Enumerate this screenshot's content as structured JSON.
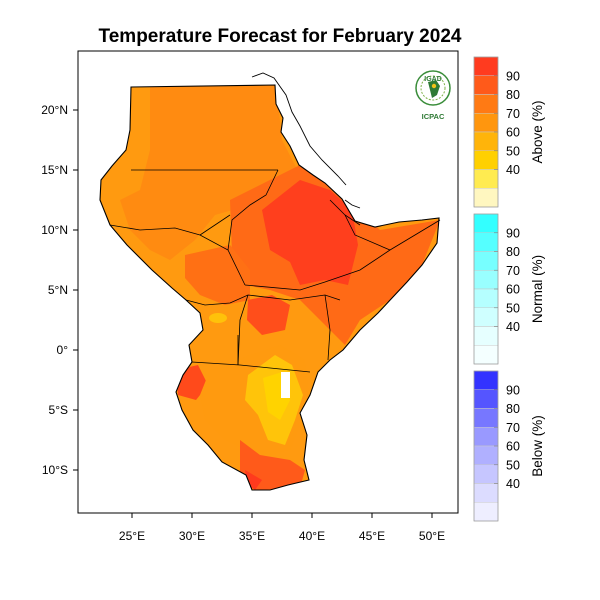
{
  "title": "Temperature Forecast for February 2024",
  "map": {
    "lon_ticks": [
      "25°E",
      "30°E",
      "35°E",
      "40°E",
      "45°E",
      "50°E"
    ],
    "lat_ticks": [
      "20°N",
      "15°N",
      "10°N",
      "5°N",
      "0°",
      "5°S",
      "10°S"
    ],
    "lon_range": [
      20.5,
      52
    ],
    "lat_range": [
      -13.5,
      24.2
    ]
  },
  "logo": {
    "top": "IGAD",
    "bottom": "ICPAC"
  },
  "colorbars": [
    {
      "label": "Above (%)",
      "ticks": [
        "90",
        "80",
        "70",
        "60",
        "50",
        "40"
      ],
      "colors": [
        "#ff3b1f",
        "#ff5a1a",
        "#ff7a14",
        "#ff960e",
        "#ffb40a",
        "#ffd000",
        "#ffeb50",
        "#fff7c0"
      ]
    },
    {
      "label": "Normal (%)",
      "ticks": [
        "90",
        "80",
        "70",
        "60",
        "50",
        "40"
      ],
      "colors": [
        "#33ffff",
        "#55ffff",
        "#77ffff",
        "#99ffff",
        "#b5ffff",
        "#cfffff",
        "#e6ffff",
        "#f4ffff"
      ]
    },
    {
      "label": "Below (%)",
      "ticks": [
        "90",
        "80",
        "70",
        "60",
        "50",
        "40"
      ],
      "colors": [
        "#3333ff",
        "#5555ff",
        "#7777ff",
        "#9999ff",
        "#b0b0ff",
        "#c6c6ff",
        "#dcdcff",
        "#eeeeff"
      ]
    }
  ]
}
